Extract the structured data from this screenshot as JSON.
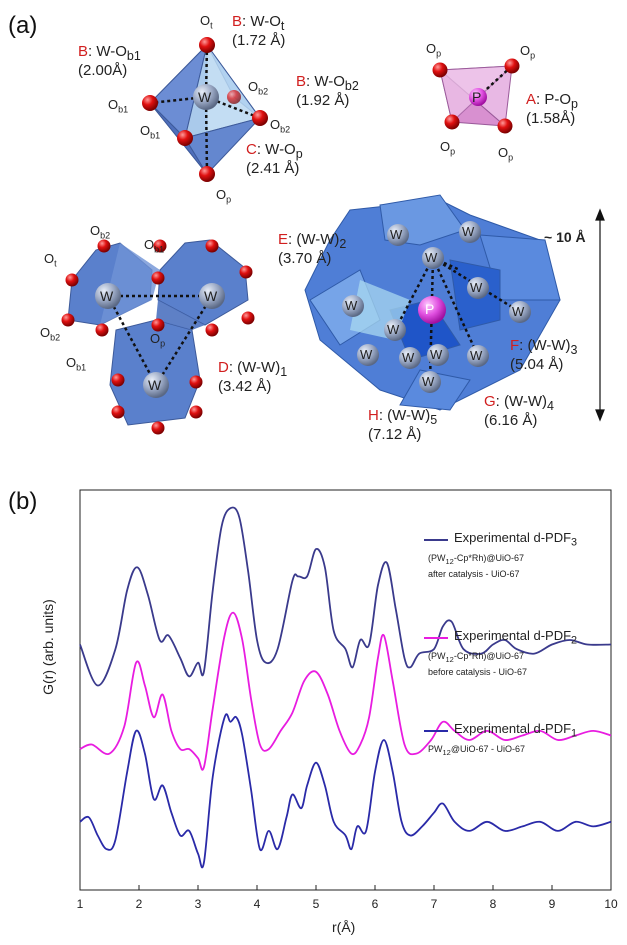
{
  "panel_a": {
    "label": "(a)",
    "octahedron": {
      "w": "W",
      "atoms": [
        {
          "name": "ot",
          "text": "O",
          "sub": "t"
        },
        {
          "name": "ob1-left",
          "text": "O",
          "sub": "b1"
        },
        {
          "name": "ob1-bottom",
          "text": "O",
          "sub": "b1"
        },
        {
          "name": "ob2-right",
          "text": "O",
          "sub": "b2"
        },
        {
          "name": "ob2-bottom",
          "text": "O",
          "sub": "b2"
        },
        {
          "name": "op",
          "text": "O",
          "sub": "p"
        }
      ],
      "bonds": [
        {
          "name": "bond-w-ot",
          "key": "B",
          "label": ": W-O",
          "sub": "t",
          "value": "(1.72 Å)"
        },
        {
          "name": "bond-w-ob1",
          "key": "B",
          "label": ": W-O",
          "sub": "b1",
          "value": "(2.00Å)"
        },
        {
          "name": "bond-w-ob2",
          "key": "B",
          "label": ": W-O",
          "sub": "b2",
          "value": "(1.92 Å)"
        },
        {
          "name": "bond-w-op",
          "key": "C",
          "label": ": W-O",
          "sub": "p",
          "value": "(2.41 Å)"
        }
      ]
    },
    "tetrahedron": {
      "p": "P",
      "atoms": [
        {
          "name": "op-tl",
          "text": "O",
          "sub": "p"
        },
        {
          "name": "op-tr",
          "text": "O",
          "sub": "p"
        },
        {
          "name": "op-bl",
          "text": "O",
          "sub": "p"
        },
        {
          "name": "op-br",
          "text": "O",
          "sub": "p"
        }
      ],
      "bond": {
        "key": "A",
        "label": ": P-O",
        "sub": "p",
        "value": "(1.58Å)"
      }
    },
    "triad": {
      "w": "W",
      "atoms": [
        {
          "name": "ob2-top",
          "text": "O",
          "sub": "b2"
        },
        {
          "name": "ob1-top",
          "text": "O",
          "sub": "b1"
        },
        {
          "name": "ot",
          "text": "O",
          "sub": "t"
        },
        {
          "name": "ob2-left",
          "text": "O",
          "sub": "b2"
        },
        {
          "name": "ob1-left",
          "text": "O",
          "sub": "b1"
        },
        {
          "name": "op",
          "text": "O",
          "sub": "p"
        }
      ],
      "distance": {
        "key": "D",
        "label": ": (W-W)",
        "sub": "1",
        "value": "(3.42 Å)"
      }
    },
    "keggin": {
      "w": "W",
      "p": "P",
      "size": "~ 10 Å",
      "distances": [
        {
          "name": "dist-ww2",
          "key": "E",
          "label": ": (W-W)",
          "sub": "2",
          "value": "(3.70 Å)"
        },
        {
          "name": "dist-ww3",
          "key": "F",
          "label": ": (W-W)",
          "sub": "3",
          "value": "(5.04 Å)"
        },
        {
          "name": "dist-ww4",
          "key": "G",
          "label": ": (W-W)",
          "sub": "4",
          "value": "(6.16 Å)"
        },
        {
          "name": "dist-ww5",
          "key": "H",
          "label": ": (W-W)",
          "sub": "5",
          "value": "(7.12 Å)"
        }
      ]
    }
  },
  "chart_data": {
    "type": "line",
    "panel_label": "(b)",
    "xlabel": "r(Å)",
    "ylabel": "G(r) (arb. units)",
    "xlim": [
      1,
      10
    ],
    "x_ticks": [
      1,
      2,
      3,
      4,
      5,
      6,
      7,
      8,
      9,
      10
    ],
    "legend_placement": "right, beside each curve",
    "series": [
      {
        "name": "Experimental d-PDF",
        "name_sub": "3",
        "desc1_main": "(PW",
        "desc1_sub": "12",
        "desc1_rest": "-Cp*Rh)@UiO-67",
        "desc2": "after catalysis - UiO-67",
        "color": "#3a3a8c",
        "offset": 2.0,
        "points": [
          [
            1.0,
            -0.5
          ],
          [
            1.3,
            -0.95
          ],
          [
            1.6,
            -0.55
          ],
          [
            1.8,
            0.1
          ],
          [
            1.97,
            0.35
          ],
          [
            2.15,
            0.05
          ],
          [
            2.35,
            -0.45
          ],
          [
            2.5,
            -0.4
          ],
          [
            2.7,
            -0.65
          ],
          [
            2.85,
            -0.85
          ],
          [
            3.0,
            -0.7
          ],
          [
            3.1,
            -0.8
          ],
          [
            3.25,
            0.1
          ],
          [
            3.4,
            0.8
          ],
          [
            3.55,
            1.0
          ],
          [
            3.7,
            0.9
          ],
          [
            3.85,
            0.3
          ],
          [
            4.0,
            -0.45
          ],
          [
            4.15,
            -0.7
          ],
          [
            4.35,
            -0.55
          ],
          [
            4.6,
            0.2
          ],
          [
            4.7,
            0.25
          ],
          [
            4.85,
            0.25
          ],
          [
            5.0,
            0.55
          ],
          [
            5.15,
            0.35
          ],
          [
            5.3,
            -0.35
          ],
          [
            5.5,
            -0.55
          ],
          [
            5.62,
            -0.75
          ],
          [
            5.75,
            -0.45
          ],
          [
            5.9,
            -0.5
          ],
          [
            6.05,
            0.15
          ],
          [
            6.2,
            0.4
          ],
          [
            6.35,
            -0.1
          ],
          [
            6.5,
            -0.65
          ],
          [
            6.6,
            -0.75
          ],
          [
            6.75,
            -0.6
          ],
          [
            7.0,
            -0.55
          ],
          [
            7.15,
            -0.3
          ],
          [
            7.3,
            -0.25
          ],
          [
            7.5,
            -0.55
          ],
          [
            7.8,
            -0.6
          ],
          [
            8.0,
            -0.5
          ],
          [
            8.2,
            -0.45
          ],
          [
            8.4,
            -0.55
          ],
          [
            8.7,
            -0.6
          ],
          [
            9.0,
            -0.5
          ],
          [
            9.3,
            -0.45
          ],
          [
            9.6,
            -0.5
          ],
          [
            10.0,
            -0.5
          ]
        ]
      },
      {
        "name": "Experimental d-PDF",
        "name_sub": "2",
        "desc1_main": "(PW",
        "desc1_sub": "12",
        "desc1_rest": "-Cp*Rh)@UiO-67",
        "desc2": "before catalysis - UiO-67",
        "color": "#e81ce0",
        "offset": 1.0,
        "points": [
          [
            1.0,
            -0.65
          ],
          [
            1.2,
            -0.6
          ],
          [
            1.5,
            -0.7
          ],
          [
            1.75,
            -0.4
          ],
          [
            1.95,
            0.3
          ],
          [
            2.1,
            0.05
          ],
          [
            2.25,
            -0.3
          ],
          [
            2.4,
            -0.05
          ],
          [
            2.55,
            -0.45
          ],
          [
            2.7,
            -0.65
          ],
          [
            2.85,
            -0.65
          ],
          [
            3.0,
            -0.75
          ],
          [
            3.1,
            -0.85
          ],
          [
            3.25,
            -0.2
          ],
          [
            3.45,
            0.6
          ],
          [
            3.6,
            0.85
          ],
          [
            3.75,
            0.55
          ],
          [
            3.9,
            -0.1
          ],
          [
            4.05,
            -0.6
          ],
          [
            4.2,
            -0.65
          ],
          [
            4.4,
            -0.45
          ],
          [
            4.6,
            -0.25
          ],
          [
            4.8,
            0.1
          ],
          [
            5.0,
            0.2
          ],
          [
            5.2,
            -0.05
          ],
          [
            5.4,
            -0.45
          ],
          [
            5.6,
            -0.7
          ],
          [
            5.75,
            -0.6
          ],
          [
            5.9,
            -0.3
          ],
          [
            6.05,
            0.35
          ],
          [
            6.15,
            0.6
          ],
          [
            6.3,
            0.1
          ],
          [
            6.5,
            -0.6
          ],
          [
            6.7,
            -0.7
          ],
          [
            6.95,
            -0.55
          ],
          [
            7.15,
            -0.35
          ],
          [
            7.35,
            -0.45
          ],
          [
            7.6,
            -0.55
          ],
          [
            7.9,
            -0.45
          ],
          [
            8.2,
            -0.55
          ],
          [
            8.5,
            -0.5
          ],
          [
            8.8,
            -0.45
          ],
          [
            9.1,
            -0.55
          ],
          [
            9.4,
            -0.5
          ],
          [
            9.7,
            -0.45
          ],
          [
            10.0,
            -0.5
          ]
        ]
      },
      {
        "name": "Experimental d-PDF",
        "name_sub": "1",
        "desc1_main": "PW",
        "desc1_sub": "12",
        "desc1_rest": "@UiO-67 - UiO-67",
        "desc2": "",
        "color": "#2a2aa8",
        "offset": 0.0,
        "points": [
          [
            1.0,
            -0.45
          ],
          [
            1.15,
            -0.4
          ],
          [
            1.3,
            -0.6
          ],
          [
            1.45,
            -0.75
          ],
          [
            1.6,
            -0.65
          ],
          [
            1.8,
            0.1
          ],
          [
            1.95,
            0.55
          ],
          [
            2.1,
            0.3
          ],
          [
            2.25,
            -0.2
          ],
          [
            2.4,
            -0.05
          ],
          [
            2.55,
            -0.35
          ],
          [
            2.7,
            -0.6
          ],
          [
            2.85,
            -0.55
          ],
          [
            3.0,
            -0.8
          ],
          [
            3.1,
            -0.9
          ],
          [
            3.25,
            0.05
          ],
          [
            3.45,
            0.7
          ],
          [
            3.55,
            0.65
          ],
          [
            3.65,
            0.7
          ],
          [
            3.75,
            0.5
          ],
          [
            3.9,
            -0.1
          ],
          [
            4.05,
            -0.75
          ],
          [
            4.2,
            -0.55
          ],
          [
            4.35,
            -0.75
          ],
          [
            4.5,
            -0.4
          ],
          [
            4.6,
            -0.15
          ],
          [
            4.75,
            -0.3
          ],
          [
            4.85,
            -0.05
          ],
          [
            5.0,
            0.2
          ],
          [
            5.15,
            -0.05
          ],
          [
            5.3,
            -0.45
          ],
          [
            5.5,
            -0.6
          ],
          [
            5.6,
            -0.75
          ],
          [
            5.7,
            -0.5
          ],
          [
            5.85,
            -0.55
          ],
          [
            6.0,
            0.1
          ],
          [
            6.15,
            0.45
          ],
          [
            6.3,
            0.1
          ],
          [
            6.45,
            -0.45
          ],
          [
            6.6,
            -0.6
          ],
          [
            6.8,
            -0.5
          ],
          [
            7.0,
            -0.35
          ],
          [
            7.15,
            -0.25
          ],
          [
            7.35,
            -0.45
          ],
          [
            7.6,
            -0.55
          ],
          [
            7.9,
            -0.45
          ],
          [
            8.2,
            -0.55
          ],
          [
            8.5,
            -0.5
          ],
          [
            8.8,
            -0.45
          ],
          [
            9.1,
            -0.55
          ],
          [
            9.4,
            -0.45
          ],
          [
            9.7,
            -0.5
          ],
          [
            10.0,
            -0.45
          ]
        ]
      }
    ]
  }
}
